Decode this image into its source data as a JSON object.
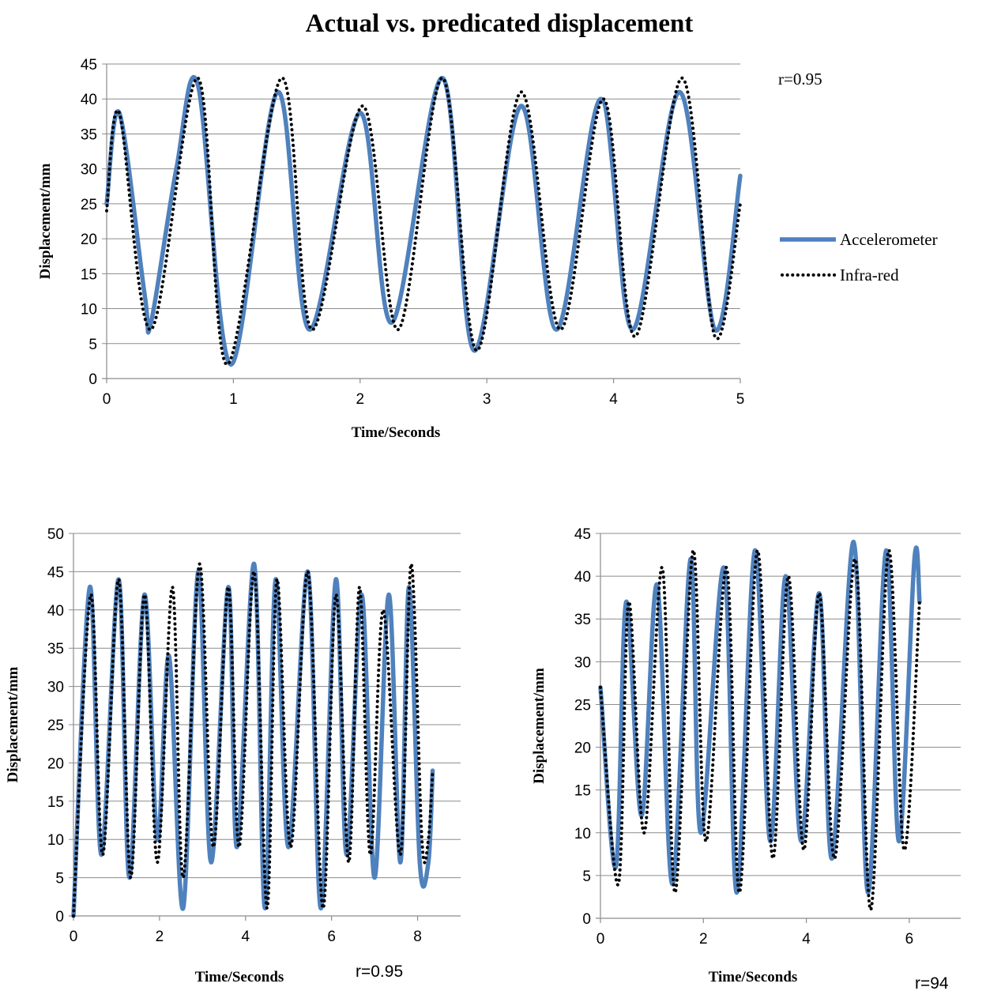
{
  "figure_title": "Actual vs. predicated displacement",
  "legend": {
    "position": "right of top chart",
    "items": [
      {
        "name": "Accelerometer",
        "color": "#4f81bd",
        "style": "solid"
      },
      {
        "name": "Infra-red",
        "color": "#000000",
        "style": "dotted"
      }
    ]
  },
  "chart_data": [
    {
      "type": "line",
      "title": "Actual vs. predicated displacement",
      "xlabel": "Time/Seconds",
      "ylabel": "Displacement/mm",
      "xlim": [
        0,
        5
      ],
      "ylim": [
        0,
        45
      ],
      "xticks": [
        0,
        1,
        2,
        3,
        4,
        5
      ],
      "yticks": [
        0,
        5,
        10,
        15,
        20,
        25,
        30,
        35,
        40,
        45
      ],
      "grid": "horizontal",
      "annotation": "r=0.95",
      "series": [
        {
          "name": "Accelerometer",
          "x": [
            0,
            0.1,
            0.3,
            0.35,
            0.55,
            0.72,
            0.98,
            1.35,
            1.6,
            2.0,
            2.25,
            2.65,
            2.9,
            3.27,
            3.55,
            3.9,
            4.15,
            4.52,
            4.8,
            5.0
          ],
          "y": [
            25,
            38,
            12,
            8,
            30,
            42,
            2,
            41,
            7,
            38,
            8,
            43,
            4,
            39,
            7,
            40,
            7,
            41,
            7,
            29
          ]
        },
        {
          "name": "Infra-red",
          "x": [
            0,
            0.1,
            0.35,
            0.72,
            0.95,
            1.38,
            1.62,
            2.02,
            2.3,
            2.65,
            2.92,
            3.27,
            3.58,
            3.92,
            4.17,
            4.54,
            4.8,
            5.0
          ],
          "y": [
            24,
            38,
            7,
            43,
            2,
            43,
            7,
            39,
            7,
            43,
            4,
            41,
            7,
            40,
            6,
            43,
            6,
            25
          ]
        }
      ]
    },
    {
      "type": "line",
      "xlabel": "Time/Seconds",
      "ylabel": "Displacement/mm",
      "xlim": [
        0,
        9
      ],
      "ylim": [
        0,
        50
      ],
      "xticks": [
        0,
        2,
        4,
        6,
        8
      ],
      "yticks": [
        0,
        5,
        10,
        15,
        20,
        25,
        30,
        35,
        40,
        45,
        50
      ],
      "grid": "horizontal",
      "annotation": "r=0.95",
      "series": [
        {
          "name": "Accelerometer",
          "x": [
            0,
            0.38,
            0.65,
            1.05,
            1.3,
            1.65,
            1.95,
            2.22,
            2.55,
            2.9,
            3.2,
            3.6,
            3.8,
            4.2,
            4.45,
            4.7,
            5.0,
            5.45,
            5.75,
            6.1,
            6.35,
            6.7,
            7.0,
            7.33,
            7.6,
            7.8,
            8.05,
            8.25,
            8.35
          ],
          "y": [
            0,
            43,
            8,
            44,
            5,
            42,
            10,
            34,
            1,
            45,
            7,
            43,
            9,
            46,
            1,
            44,
            9,
            45,
            1,
            44,
            8,
            42,
            5,
            42,
            7,
            43,
            7,
            7,
            19
          ]
        },
        {
          "name": "Infra-red",
          "x": [
            0,
            0.4,
            0.68,
            1.05,
            1.33,
            1.65,
            1.95,
            2.3,
            2.55,
            2.93,
            3.25,
            3.6,
            3.85,
            4.2,
            4.5,
            4.73,
            5.05,
            5.45,
            5.8,
            6.1,
            6.4,
            6.65,
            6.9,
            7.2,
            7.6,
            7.85,
            8.1,
            8.25,
            8.35
          ],
          "y": [
            0,
            42,
            8,
            44,
            5,
            42,
            7,
            43,
            5,
            46,
            9,
            43,
            9,
            45,
            1,
            44,
            9,
            45,
            1,
            42,
            7,
            43,
            8,
            40,
            8,
            46,
            10,
            10,
            19
          ]
        }
      ]
    },
    {
      "type": "line",
      "xlabel": "Time/Seconds",
      "ylabel": "Displacement/mm",
      "xlim": [
        0,
        7
      ],
      "ylim": [
        0,
        45
      ],
      "xticks": [
        0,
        2,
        4,
        6
      ],
      "yticks": [
        0,
        5,
        10,
        15,
        20,
        25,
        30,
        35,
        40,
        45
      ],
      "grid": "horizontal",
      "annotation": "r=94",
      "series": [
        {
          "name": "Accelerometer",
          "x": [
            0,
            0.3,
            0.5,
            0.8,
            1.1,
            1.4,
            1.75,
            1.95,
            2.4,
            2.65,
            3.0,
            3.3,
            3.6,
            3.9,
            4.25,
            4.5,
            4.92,
            5.2,
            5.55,
            5.8,
            6.1,
            6.2
          ],
          "y": [
            27,
            6,
            37,
            12,
            39,
            4,
            42,
            10,
            41,
            3,
            43,
            9,
            40,
            9,
            38,
            7,
            44,
            3,
            43,
            9,
            42,
            37
          ]
        },
        {
          "name": "Infra-red",
          "x": [
            0,
            0.35,
            0.55,
            0.85,
            1.2,
            1.45,
            1.8,
            2.05,
            2.45,
            2.7,
            3.05,
            3.35,
            3.65,
            3.95,
            4.25,
            4.55,
            4.95,
            5.25,
            5.6,
            5.9,
            6.2
          ],
          "y": [
            27,
            4,
            37,
            10,
            41,
            3,
            43,
            9,
            41,
            3,
            43,
            7,
            40,
            8,
            38,
            7,
            42,
            1,
            43,
            8,
            37
          ]
        }
      ]
    }
  ]
}
